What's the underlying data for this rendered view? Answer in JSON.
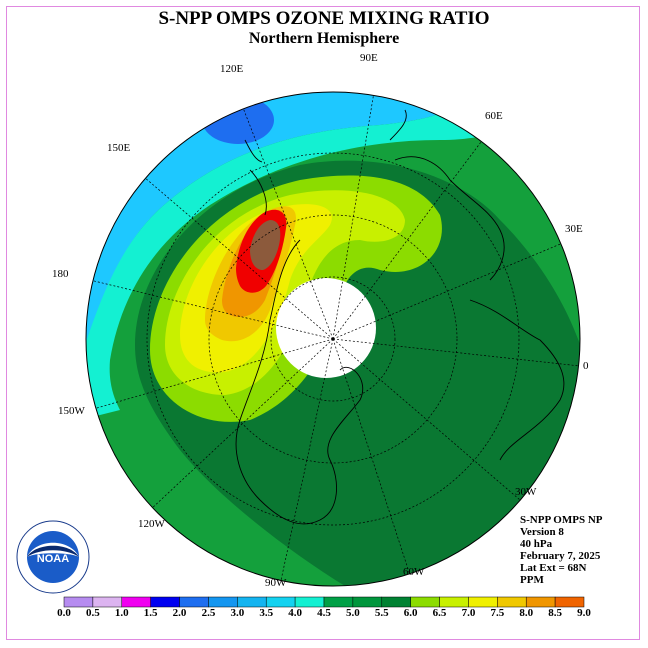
{
  "title": "S-NPP OMPS OZONE MIXING RATIO",
  "subtitle": "Northern Hemisphere",
  "longitude_labels": [
    "90E",
    "60E",
    "30E",
    "0",
    "30W",
    "60W",
    "90W",
    "120W",
    "150W",
    "180",
    "150E",
    "120E"
  ],
  "info": {
    "line1": "S-NPP OMPS NP",
    "line2": "Version 8",
    "line3": "40 hPa",
    "line4": "February 7, 2025",
    "line5": "Lat Ext = 68N",
    "line6": "PPM"
  },
  "logo_text": "NOAA",
  "colorbar": {
    "ticks": [
      "0.0",
      "0.5",
      "1.0",
      "1.5",
      "2.0",
      "2.5",
      "3.0",
      "3.5",
      "4.0",
      "4.5",
      "5.0",
      "5.5",
      "6.0",
      "6.5",
      "7.0",
      "7.5",
      "8.0",
      "8.5",
      "9.0"
    ],
    "colors": [
      "#b68cf0",
      "#dcb4f0",
      "#f000f0",
      "#0000f0",
      "#1e6ef0",
      "#1496f0",
      "#14b4f0",
      "#14d2f0",
      "#14f0d2",
      "#00a046",
      "#00963c",
      "#008232",
      "#8cdc00",
      "#c8f000",
      "#f0f000",
      "#f0c800",
      "#f09600",
      "#f06400",
      "#f00000",
      "#8c5a3c"
    ]
  },
  "map_colors": {
    "ocean_blue": "#1ec8ff",
    "cyan": "#14f0d2",
    "green": "#14a03c",
    "dark_green": "#0a7832",
    "light_green": "#8cdc00",
    "yellow_green": "#c8f000",
    "yellow": "#f0f000",
    "orange": "#f09600",
    "red": "#f00000",
    "brown": "#8c5a3c",
    "blue": "#1e6ef0"
  }
}
